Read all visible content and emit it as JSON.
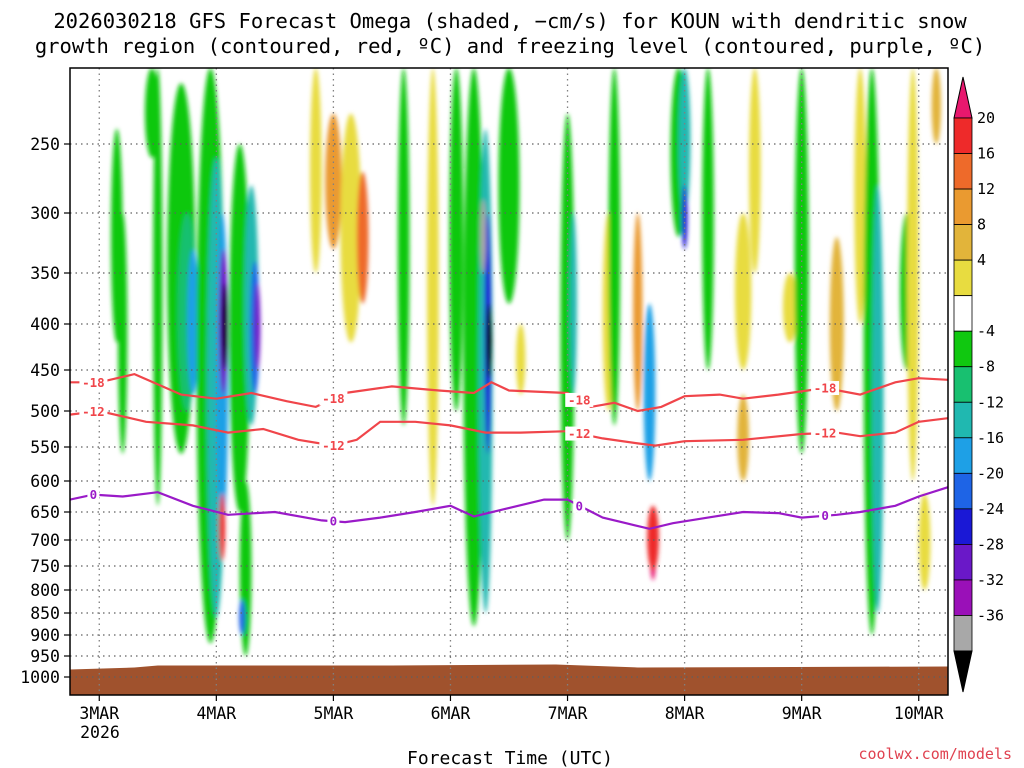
{
  "chart_data": {
    "type": "heatmap",
    "title_line1": "2026030218 GFS Forecast Omega (shaded, −cm/s) for KOUN with dendritic snow",
    "title_line2": "growth region (contoured, red, ºC) and freezing level (contoured, purple, ºC)",
    "xlabel": "Forecast Time (UTC)",
    "ylabel": "",
    "credit": "coolwx.com/models",
    "x_tick_labels": [
      "3MAR",
      "4MAR",
      "5MAR",
      "6MAR",
      "7MAR",
      "8MAR",
      "9MAR",
      "10MAR"
    ],
    "x_year_label": "2026",
    "x_range_days": [
      2.75,
      10.25
    ],
    "y_tick_labels": [
      "250",
      "300",
      "350",
      "400",
      "450",
      "500",
      "550",
      "600",
      "650",
      "700",
      "750",
      "800",
      "850",
      "900",
      "950",
      "1000"
    ],
    "y_range_hpa": [
      200,
      1050
    ],
    "colorbar": {
      "label_values": [
        "20",
        "16",
        "12",
        "8",
        "4",
        "-4",
        "-8",
        "-12",
        "-16",
        "-20",
        "-24",
        "-28",
        "-32",
        "-36"
      ],
      "colors": [
        "#e8186e",
        "#ee2a2a",
        "#ee6a2a",
        "#ea9a30",
        "#e2b43a",
        "#e8dc40",
        "#ffffff",
        "#10c810",
        "#18c070",
        "#20b8b0",
        "#1ea0e6",
        "#1e64e6",
        "#1a18d6",
        "#6a18c8",
        "#9a10b8",
        "#a8a8a8",
        "#000000"
      ]
    },
    "contours": [
      {
        "name": "-18",
        "color": "#f0454a",
        "label": "-18",
        "x_days": [
          2.75,
          3.0,
          3.3,
          3.7,
          4.0,
          4.3,
          4.6,
          4.85,
          5.1,
          5.5,
          5.9,
          6.2,
          6.35,
          6.5,
          7.0,
          7.2,
          7.4,
          7.6,
          7.8,
          8.0,
          8.3,
          8.5,
          8.8,
          9.2,
          9.5,
          9.8,
          10.0,
          10.25
        ],
        "p_hpa": [
          465,
          465,
          455,
          480,
          485,
          478,
          488,
          495,
          478,
          470,
          475,
          478,
          465,
          475,
          478,
          495,
          490,
          500,
          495,
          482,
          480,
          485,
          480,
          472,
          480,
          465,
          460,
          462
        ]
      },
      {
        "name": "-12",
        "color": "#f0454a",
        "label": "-12",
        "x_days": [
          2.75,
          3.0,
          3.4,
          3.8,
          4.1,
          4.4,
          4.7,
          5.0,
          5.2,
          5.4,
          5.7,
          6.0,
          6.3,
          6.6,
          7.0,
          7.3,
          7.6,
          7.75,
          8.0,
          8.5,
          9.0,
          9.3,
          9.5,
          9.8,
          10.0,
          10.25
        ],
        "p_hpa": [
          505,
          500,
          515,
          520,
          530,
          525,
          540,
          548,
          540,
          515,
          515,
          520,
          530,
          530,
          528,
          538,
          545,
          548,
          542,
          540,
          532,
          530,
          535,
          530,
          515,
          510
        ]
      },
      {
        "name": "0",
        "color": "#9a1ac8",
        "label": "0",
        "x_days": [
          2.75,
          2.95,
          3.2,
          3.5,
          3.8,
          4.1,
          4.5,
          4.9,
          5.1,
          5.4,
          5.7,
          6.0,
          6.2,
          6.4,
          6.8,
          7.0,
          7.3,
          7.5,
          7.7,
          7.9,
          8.2,
          8.5,
          8.8,
          9.0,
          9.3,
          9.5,
          9.8,
          10.0,
          10.25
        ],
        "p_hpa": [
          630,
          622,
          625,
          618,
          640,
          655,
          650,
          665,
          668,
          660,
          650,
          640,
          658,
          648,
          630,
          630,
          660,
          670,
          680,
          670,
          660,
          650,
          652,
          660,
          655,
          650,
          640,
          625,
          610
        ]
      }
    ],
    "surface_label": "terrain below 975 hPa",
    "notable_features": [
      "Strong ascent near 4MAR (omega < -36 cm/s at 400-450 hPa)",
      "Ascent column 6MAR 06Z",
      "Ascent column 7MAR 18Z with subsidence near 700-750 hPa"
    ]
  }
}
